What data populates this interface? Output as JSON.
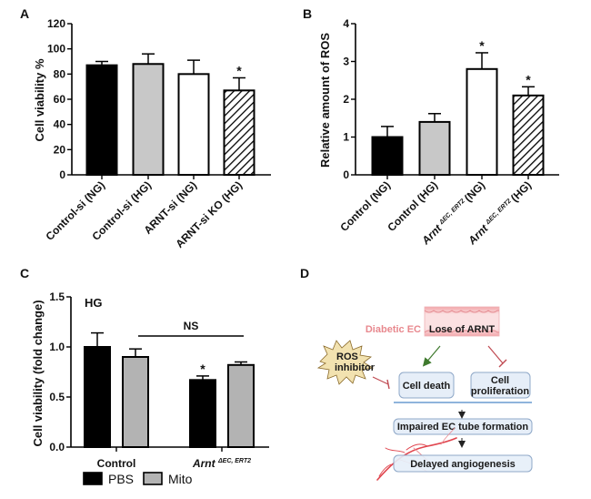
{
  "chart_data": [
    {
      "panel": "A",
      "type": "bar",
      "title": "",
      "xlabel": "",
      "ylabel": "Cell viability %",
      "ylim": [
        0,
        120
      ],
      "yticks": [
        "0",
        "20",
        "40",
        "60",
        "80",
        "100",
        "120"
      ],
      "categories": [
        "Control-si (NG)",
        "Control-si (HG)",
        "ARNT-si   (NG)",
        "ARNT-si KO (HG)"
      ],
      "values": [
        87,
        88,
        80,
        67
      ],
      "error_upper": [
        90,
        96,
        91,
        77
      ],
      "fills": [
        "black",
        "gray",
        "white",
        "hatch"
      ],
      "significance": [
        "",
        "",
        "",
        "*"
      ]
    },
    {
      "panel": "B",
      "type": "bar",
      "title": "",
      "xlabel": "",
      "ylabel": "Relative amount of ROS",
      "ylim": [
        0,
        4
      ],
      "yticks": [
        "0",
        "1",
        "2",
        "3",
        "4"
      ],
      "categories": [
        {
          "main": "Control (NG)",
          "sup": ""
        },
        {
          "main": "Control (HG)",
          "sup": ""
        },
        {
          "main": "Arnt",
          "sup": "ΔEC, ERT2",
          "suffix": "(NG)"
        },
        {
          "main": "Arnt",
          "sup": "ΔEC, ERT2",
          "suffix": "(HG)"
        }
      ],
      "values": [
        1.0,
        1.4,
        2.8,
        2.1
      ],
      "error_upper": [
        1.28,
        1.62,
        3.23,
        2.33
      ],
      "fills": [
        "black",
        "gray",
        "white",
        "hatch"
      ],
      "significance": [
        "",
        "",
        "*",
        "*"
      ]
    },
    {
      "panel": "C",
      "type": "bar",
      "title": "HG",
      "xlabel": "",
      "ylabel": "Cell viability (fold change)",
      "ylim": [
        0,
        1.5
      ],
      "yticks": [
        "0.0",
        "0.5",
        "1.0",
        "1.5"
      ],
      "categories": [
        {
          "main": "Control",
          "sup": ""
        },
        {
          "main": "Arnt",
          "sup": "ΔEC, ERT2"
        }
      ],
      "series": [
        {
          "name": "PBS",
          "color": "#000000",
          "values": [
            1.0,
            0.67
          ],
          "error": [
            0.14,
            0.04
          ],
          "significance": [
            "",
            "*"
          ]
        },
        {
          "name": "Mito",
          "color": "#b3b3b3",
          "values": [
            0.9,
            0.82
          ],
          "error": [
            0.08,
            0.03
          ],
          "significance": [
            "",
            ""
          ]
        }
      ],
      "annotation": "NS",
      "legend": "bottom"
    }
  ],
  "panel_labels": [
    "A",
    "B",
    "C",
    "D"
  ],
  "diagram": {
    "diabetic_ec": "Diabetic EC",
    "lose_arnt": "Lose of ARNT",
    "ros_inhibitor": [
      "ROS",
      "inhibitor"
    ],
    "cell_death": "Cell death",
    "cell_proliferation": [
      "Cell",
      "proliferation"
    ],
    "impaired": "Impaired EC tube formation",
    "delayed": "Delayed angiogenesis"
  },
  "colors": {
    "black": "#000000",
    "gray": "#c8c8c8",
    "mito_gray": "#b3b3b3",
    "pink": "#e8888e",
    "box_fill": "#e6eef8",
    "box_stroke": "#8fa8c8",
    "green_arrow": "#3f7a2e",
    "red_inhibit": "#c04a52",
    "star_fill": "#f2e2b0"
  }
}
